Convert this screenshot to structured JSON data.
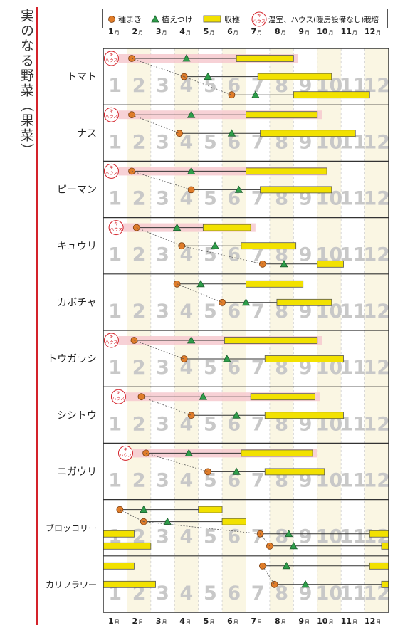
{
  "title": "実のなる野菜（果菜）",
  "legend": {
    "sowing": "種まき",
    "planting": "植えつけ",
    "harvest": "収穫",
    "house_badge": "ハウス",
    "house_badge_top": "キ",
    "house": "温室、ハウス(暖房設備なし)栽培"
  },
  "colors": {
    "sow": "#e07d2a",
    "plant": "#2e9e4a",
    "harvest": "#f2e100",
    "house_band": "#f6c9cf",
    "col_odd": "#faf6e3",
    "frame": "#333333",
    "accent": "#d4222a"
  },
  "months": [
    "1",
    "2",
    "3",
    "4",
    "5",
    "6",
    "7",
    "8",
    "9",
    "10",
    "11",
    "12"
  ],
  "month_suffix": "月",
  "chart_data": {
    "type": "gantt",
    "x_unit": "month",
    "xlim": [
      1,
      13
    ],
    "crops": [
      {
        "name": "トマト",
        "rows": [
          {
            "house": true,
            "sow": 2.2,
            "plant": 4.5,
            "harvest": [
              6.6,
              9.0
            ],
            "band": [
              2.0,
              9.2
            ]
          },
          {
            "sow": 4.4,
            "plant": 5.4,
            "harvest": [
              7.5,
              10.6
            ]
          },
          {
            "sow": 6.4,
            "plant": 7.4,
            "harvest": [
              9.0,
              12.2
            ]
          }
        ]
      },
      {
        "name": "ナス",
        "rows": [
          {
            "house": true,
            "sow": 2.2,
            "plant": 4.7,
            "harvest": [
              7.0,
              10.0
            ],
            "band": [
              2.0,
              10.2
            ]
          },
          {
            "sow": 4.2,
            "plant": 6.4,
            "harvest": [
              7.6,
              11.6
            ]
          }
        ]
      },
      {
        "name": "ピーマン",
        "rows": [
          {
            "house": true,
            "sow": 2.2,
            "plant": 4.7,
            "harvest": [
              7.0,
              10.4
            ],
            "band": [
              2.0,
              10.4
            ]
          },
          {
            "sow": 4.7,
            "plant": 6.7,
            "harvest": [
              7.6,
              10.6
            ]
          }
        ]
      },
      {
        "name": "キュウリ",
        "rows": [
          {
            "house": true,
            "sow": 2.4,
            "plant": 4.1,
            "harvest": [
              5.2,
              7.2
            ],
            "band": [
              2.2,
              7.4
            ]
          },
          {
            "sow": 4.3,
            "plant": 5.7,
            "harvest": [
              6.8,
              9.1
            ]
          },
          {
            "sow": 7.7,
            "plant": 8.6,
            "harvest": [
              10.0,
              11.1
            ]
          }
        ]
      },
      {
        "name": "カボチャ",
        "rows": [
          {
            "sow": 4.1,
            "plant": 5.1,
            "harvest": [
              7.0,
              9.4
            ]
          },
          {
            "sow": 6.0,
            "plant": 7.0,
            "harvest": [
              8.3,
              10.6
            ]
          }
        ]
      },
      {
        "name": "トウガラシ",
        "rows": [
          {
            "house": true,
            "sow": 2.3,
            "plant": 4.7,
            "harvest": [
              6.1,
              10.0
            ],
            "band": [
              2.0,
              10.2
            ]
          },
          {
            "sow": 4.4,
            "plant": 6.2,
            "harvest": [
              7.8,
              11.1
            ]
          }
        ]
      },
      {
        "name": "シシトウ",
        "rows": [
          {
            "house": true,
            "sow": 2.6,
            "plant": 5.2,
            "harvest": [
              7.2,
              9.9
            ],
            "band": [
              2.3,
              10.1
            ]
          },
          {
            "sow": 4.7,
            "plant": 6.6,
            "harvest": [
              7.8,
              11.1
            ]
          }
        ]
      },
      {
        "name": "ニガウリ",
        "rows": [
          {
            "house": true,
            "sow": 2.8,
            "plant": 4.6,
            "harvest": [
              6.8,
              9.8
            ],
            "band": [
              2.6,
              10.0
            ]
          },
          {
            "sow": 5.4,
            "plant": 6.6,
            "harvest": [
              7.8,
              10.3
            ]
          }
        ]
      },
      {
        "name": "ブロッコリー",
        "rows": [
          {
            "sow": 1.7,
            "plant": 2.7,
            "harvest": [
              5.0,
              6.0
            ]
          },
          {
            "sow": 2.7,
            "plant": 3.7,
            "harvest": [
              6.0,
              7.0
            ]
          },
          {
            "sow": 7.6,
            "plant": 8.8,
            "harvest": [
              [
                1.0,
                2.3
              ],
              [
                12.2,
                13.0
              ]
            ]
          },
          {
            "sow": 8.0,
            "plant": 9.0,
            "harvest": [
              [
                1.0,
                3.0
              ],
              [
                12.7,
                13.0
              ]
            ]
          }
        ]
      },
      {
        "name": "カリフラワー",
        "rows": [
          {
            "sow": 7.7,
            "plant": 8.7,
            "harvest": [
              [
                1.0,
                2.3
              ],
              [
                12.2,
                13.0
              ]
            ]
          },
          {
            "sow": 8.2,
            "plant": 9.5,
            "harvest": [
              [
                1.0,
                3.2
              ],
              [
                12.7,
                13.0
              ]
            ]
          }
        ]
      }
    ]
  }
}
